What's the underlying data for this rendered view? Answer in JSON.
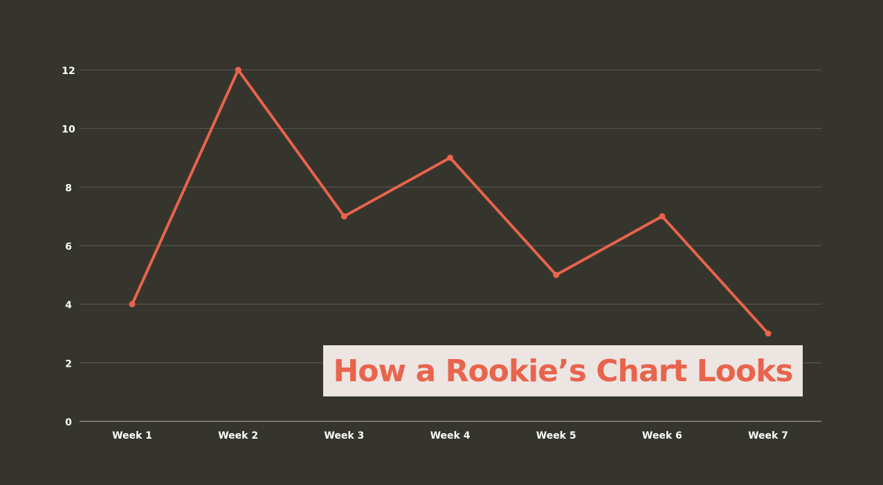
{
  "chart_data": {
    "type": "line",
    "title": "How a Rookie’s Chart Looks",
    "xlabel": "",
    "ylabel": "",
    "categories": [
      "Week 1",
      "Week 2",
      "Week 3",
      "Week 4",
      "Week 5",
      "Week 6",
      "Week 7"
    ],
    "series": [
      {
        "values": [
          4,
          12,
          7,
          9,
          5,
          7,
          3
        ]
      }
    ],
    "ylim": [
      0,
      12
    ],
    "yticks": [
      "0",
      "2",
      "4",
      "6",
      "8",
      "10",
      "12"
    ],
    "grid": true,
    "legend": "none"
  },
  "colors": {
    "background": "#36352d",
    "line": "#e8644c",
    "grid": "#5d5c54",
    "axis": "#8a897f",
    "tick_text": "#ffffff",
    "title_box": "#ede5e2",
    "title_text": "#e8644c"
  }
}
